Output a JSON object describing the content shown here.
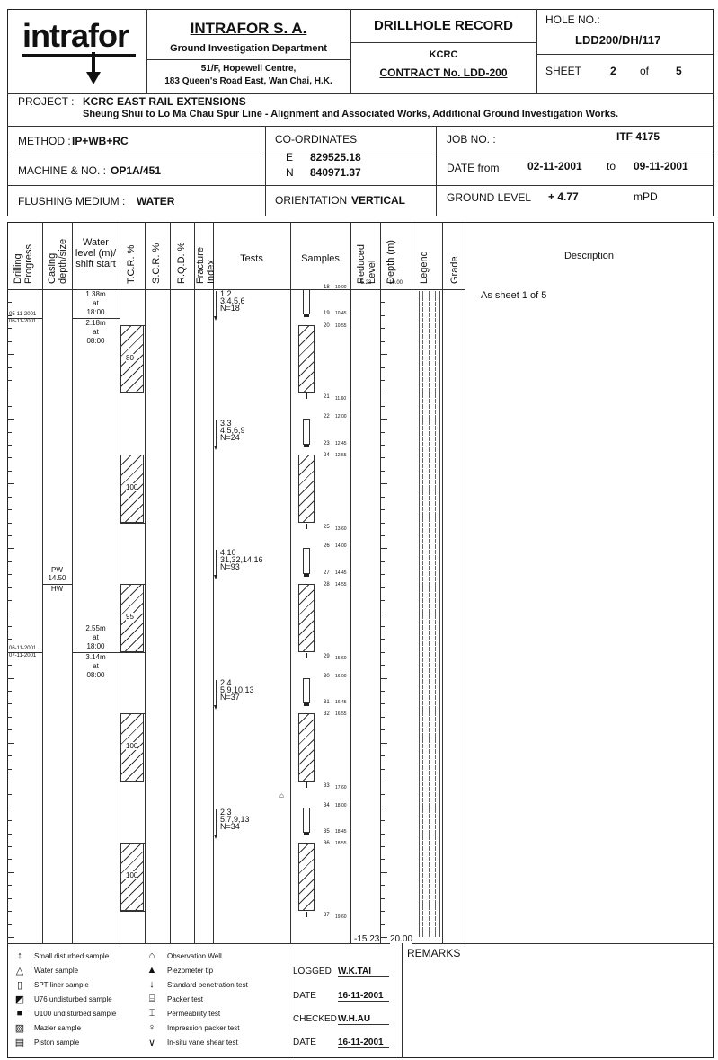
{
  "header": {
    "logo": "intrafor",
    "company": "INTRAFOR S. A.",
    "department": "Ground Investigation Department",
    "address_1": "51/F, Hopewell Centre,",
    "address_2": "183 Queen's Road East, Wan Chai, H.K.",
    "record_title": "DRILLHOLE RECORD",
    "client": "KCRC",
    "contract": "CONTRACT No. LDD-200",
    "hole_label": "HOLE NO.:",
    "hole_no": "LDD200/DH/117",
    "sheet_label": "SHEET",
    "sheet": "2",
    "of_label": "of",
    "sheet_total": "5"
  },
  "project": {
    "label": "PROJECT :",
    "title": "KCRC EAST RAIL EXTENSIONS",
    "subtitle": "Sheung Shui to Lo Ma Chau Spur Line - Alignment and Associated Works, Additional Ground Investigation Works."
  },
  "info": {
    "method_label": "METHOD :",
    "method": "IP+WB+RC",
    "machine_label": "MACHINE & NO. :",
    "machine": "OP1A/451",
    "flushing_label": "FLUSHING MEDIUM :",
    "flushing": "WATER",
    "coord_label": "CO-ORDINATES",
    "e_label": "E",
    "e": "829525.18",
    "n_label": "N",
    "n": "840971.37",
    "orientation_label": "ORIENTATION",
    "orientation": "VERTICAL",
    "job_label": "JOB NO. :",
    "job": "ITF 4175",
    "date_label": "DATE from",
    "date_from": "02-11-2001",
    "to_label": "to",
    "date_to": "09-11-2001",
    "ground_label": "GROUND LEVEL",
    "ground": "+ 4.77",
    "ground_unit": "mPD"
  },
  "columns": {
    "drilling": "Drilling Progress",
    "casing": "Casing depth/size",
    "water": "Water level (m)/ shift start",
    "tcr": "T.C.R. %",
    "scr": "S.C.R. %",
    "rqd": "R.Q.D. %",
    "fracture": "Fracture Index",
    "tests": "Tests",
    "samples": "Samples",
    "reduced": "Reduced Level",
    "depth": "Depth (m)",
    "legend": "Legend",
    "grade": "Grade",
    "description": "Description",
    "reduced_top": "-5.23",
    "depth_top": "10.00",
    "reduced_bottom": "-15.23",
    "depth_bottom": "20.00"
  },
  "depth_range": [
    10.0,
    20.0
  ],
  "progress": [
    {
      "depth": 10.45,
      "before": "05-11-2001",
      "after": "06-11-2001"
    },
    {
      "depth": 15.6,
      "before": "06-11-2001",
      "after": "07-11-2001"
    }
  ],
  "water": [
    {
      "depth": 10.45,
      "before": [
        "1.38m",
        "at",
        "18:00"
      ],
      "after": [
        "2.18m",
        "at",
        "08:00"
      ]
    },
    {
      "depth": 15.6,
      "before": [
        "2.55m",
        "at",
        "18:00"
      ],
      "after": [
        "3.14m",
        "at",
        "08:00"
      ]
    }
  ],
  "casing": {
    "depth": 14.55,
    "above": [
      "PW",
      "14.50"
    ],
    "below": "HW"
  },
  "tcr": [
    {
      "from": 10.55,
      "to": 11.6,
      "value": "80"
    },
    {
      "from": 12.55,
      "to": 13.6,
      "value": "100"
    },
    {
      "from": 14.55,
      "to": 15.6,
      "value": "95"
    },
    {
      "from": 16.55,
      "to": 17.6,
      "value": "100"
    },
    {
      "from": 18.55,
      "to": 19.6,
      "value": "100"
    }
  ],
  "tests": [
    {
      "depth": 10.0,
      "lines": [
        "1,2",
        "3,4,5,6",
        "N=18"
      ]
    },
    {
      "depth": 12.0,
      "lines": [
        "3,3",
        "4,5,6,9",
        "N=24"
      ]
    },
    {
      "depth": 14.0,
      "lines": [
        "4,10",
        "31,32,14,16",
        "N=93"
      ]
    },
    {
      "depth": 16.0,
      "lines": [
        "2,4",
        "5,9,10,13",
        "N=37"
      ]
    },
    {
      "depth": 18.0,
      "lines": [
        "2,3",
        "5,7,9,13",
        "N=34"
      ]
    }
  ],
  "samples": [
    {
      "liner_from": 10.0,
      "liner_to": 10.45,
      "mazier_from": 10.55,
      "mazier_to": 11.6,
      "labels": [
        {
          "no": "18",
          "depth": "10.00",
          "at": 10.0
        },
        {
          "no": "19",
          "depth": "10.45",
          "at": 10.45
        },
        {
          "no": "20",
          "depth": "10.55",
          "at": 10.55
        },
        {
          "no": "21",
          "depth": "11.60",
          "at": 11.6
        }
      ]
    },
    {
      "liner_from": 12.0,
      "liner_to": 12.45,
      "mazier_from": 12.55,
      "mazier_to": 13.6,
      "labels": [
        {
          "no": "22",
          "depth": "12.00",
          "at": 12.0
        },
        {
          "no": "23",
          "depth": "12.45",
          "at": 12.45
        },
        {
          "no": "24",
          "depth": "12.55",
          "at": 12.55
        },
        {
          "no": "25",
          "depth": "13.60",
          "at": 13.6
        }
      ]
    },
    {
      "liner_from": 14.0,
      "liner_to": 14.45,
      "mazier_from": 14.55,
      "mazier_to": 15.6,
      "labels": [
        {
          "no": "26",
          "depth": "14.00",
          "at": 14.0
        },
        {
          "no": "27",
          "depth": "14.45",
          "at": 14.45
        },
        {
          "no": "28",
          "depth": "14.55",
          "at": 14.55
        },
        {
          "no": "29",
          "depth": "15.60",
          "at": 15.6
        }
      ]
    },
    {
      "liner_from": 16.0,
      "liner_to": 16.45,
      "mazier_from": 16.55,
      "mazier_to": 17.6,
      "labels": [
        {
          "no": "30",
          "depth": "16.00",
          "at": 16.0
        },
        {
          "no": "31",
          "depth": "16.45",
          "at": 16.45
        },
        {
          "no": "32",
          "depth": "16.55",
          "at": 16.55
        },
        {
          "no": "33",
          "depth": "17.60",
          "at": 17.6
        }
      ]
    },
    {
      "liner_from": 18.0,
      "liner_to": 18.45,
      "mazier_from": 18.55,
      "mazier_to": 19.6,
      "labels": [
        {
          "no": "34",
          "depth": "18.00",
          "at": 18.0
        },
        {
          "no": "35",
          "depth": "18.45",
          "at": 18.45
        },
        {
          "no": "36",
          "depth": "18.55",
          "at": 18.55
        },
        {
          "no": "37",
          "depth": "19.60",
          "at": 19.6
        }
      ]
    }
  ],
  "description": "As sheet 1 of 5",
  "key": {
    "left": [
      "Small disturbed sample",
      "Water sample",
      "SPT liner sample",
      "U76 undisturbed sample",
      "U100 undisturbed sample",
      "Mazier sample",
      "Piston sample"
    ],
    "right": [
      "Observation Well",
      "Piezometer tip",
      "Standard penetration test",
      "Packer test",
      "Permeability test",
      "Impression packer test",
      "In-situ vane shear test"
    ],
    "left_icons": [
      "small-disturbed-icon",
      "water-sample-icon",
      "spt-liner-icon",
      "u76-icon",
      "u100-icon",
      "mazier-icon",
      "piston-icon"
    ],
    "right_icons": [
      "observation-well-icon",
      "piezometer-icon",
      "spt-arrow-icon",
      "packer-icon",
      "permeability-icon",
      "impression-packer-icon",
      "vane-shear-icon"
    ]
  },
  "signoff": {
    "logged_label": "LOGGED",
    "logged": "W.K.TAI",
    "date1_label": "DATE",
    "date1": "16-11-2001",
    "checked_label": "CHECKED",
    "checked": "W.H.AU",
    "date2_label": "DATE",
    "date2": "16-11-2001"
  },
  "remarks_label": "REMARKS"
}
